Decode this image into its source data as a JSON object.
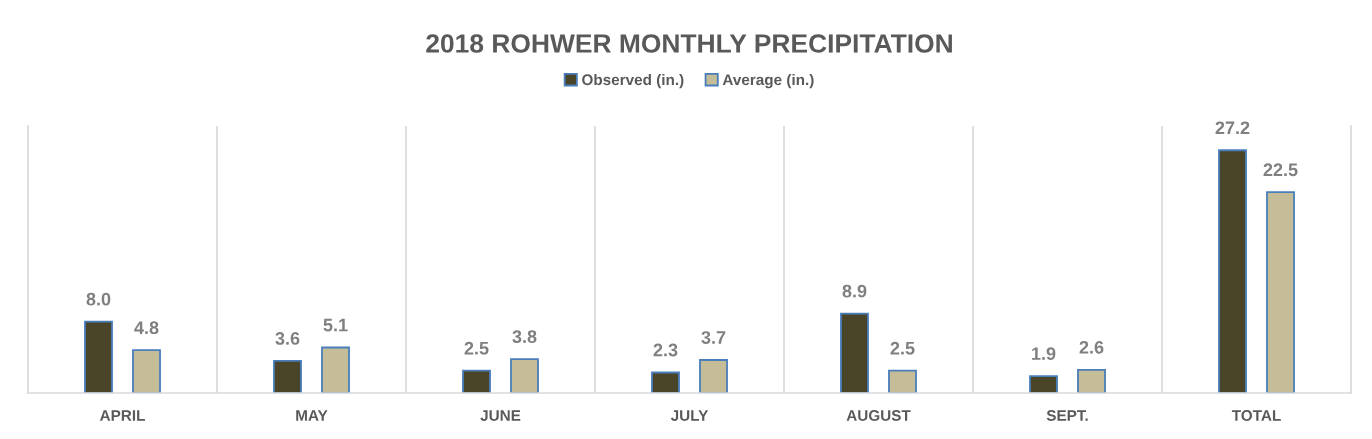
{
  "chart_data": {
    "type": "bar",
    "title": "2018 ROHWER MONTHLY PRECIPITATION",
    "categories": [
      "APRIL",
      "MAY",
      "JUNE",
      "JULY",
      "AUGUST",
      "SEPT.",
      "TOTAL"
    ],
    "series": [
      {
        "name": "Observed (in.)",
        "color": "#4a4429",
        "values": [
          8.0,
          3.6,
          2.5,
          2.3,
          8.9,
          1.9,
          27.2
        ],
        "value_labels": [
          "8.0",
          "3.6",
          "2.5",
          "2.3",
          "8.9",
          "1.9",
          "27.2"
        ]
      },
      {
        "name": "Average (in.)",
        "color": "#c4bd97",
        "values": [
          4.8,
          5.1,
          3.8,
          3.7,
          2.5,
          2.6,
          22.5
        ],
        "value_labels": [
          "4.8",
          "5.1",
          "3.8",
          "3.7",
          "2.5",
          "2.6",
          "22.5"
        ]
      }
    ],
    "legend": "top",
    "grid": "x",
    "tick_labels": "x"
  }
}
